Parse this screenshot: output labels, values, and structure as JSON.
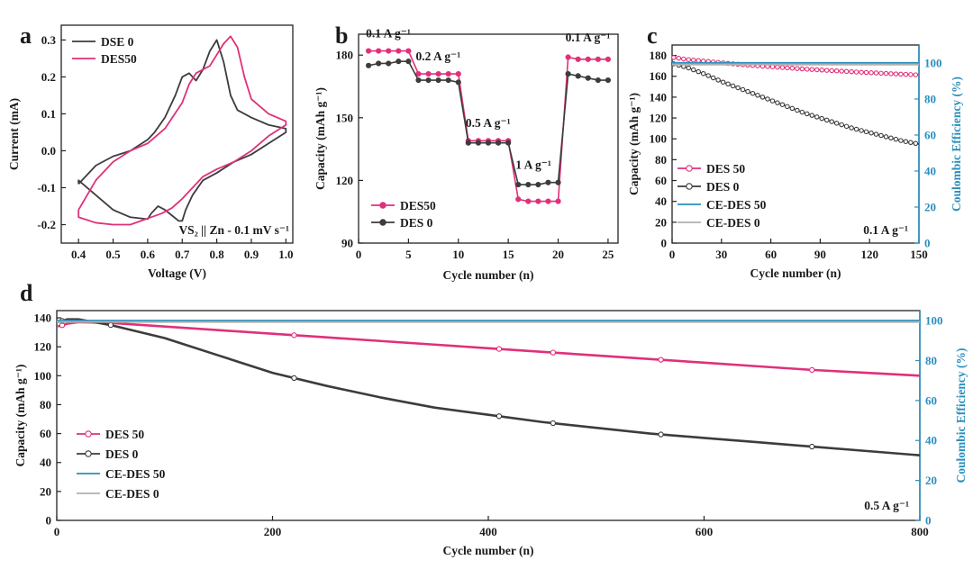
{
  "colors": {
    "pink": "#e0307a",
    "dark": "#3c3c3c",
    "blue": "#2a8fbd",
    "lightgray": "#b0b0b0"
  },
  "chart_data": [
    {
      "id": "a",
      "panel_label": "a",
      "type": "line",
      "title": "",
      "xlabel": "Voltage (V)",
      "ylabel": "Current (mA)",
      "xlim": [
        0.35,
        1.02
      ],
      "ylim": [
        -0.25,
        0.34
      ],
      "xticks": [
        0.4,
        0.5,
        0.6,
        0.7,
        0.8,
        0.9,
        1.0
      ],
      "yticks": [
        -0.2,
        -0.1,
        0.0,
        0.1,
        0.2,
        0.3
      ],
      "annotation": "VS₂ || Zn - 0.1 mV s⁻¹",
      "legend": [
        "DSE 0",
        "DES50"
      ],
      "series": [
        {
          "name": "DSE 0",
          "color": "#3c3c3c",
          "x": [
            0.4,
            0.45,
            0.5,
            0.55,
            0.6,
            0.62,
            0.65,
            0.68,
            0.7,
            0.72,
            0.74,
            0.76,
            0.78,
            0.8,
            0.82,
            0.84,
            0.86,
            0.9,
            0.95,
            1.0,
            1.0,
            0.95,
            0.9,
            0.85,
            0.8,
            0.76,
            0.73,
            0.71,
            0.7,
            0.69,
            0.67,
            0.65,
            0.63,
            0.61,
            0.6,
            0.55,
            0.5,
            0.45,
            0.4
          ],
          "y": [
            -0.09,
            -0.04,
            -0.015,
            0.0,
            0.03,
            0.05,
            0.09,
            0.15,
            0.2,
            0.21,
            0.19,
            0.22,
            0.27,
            0.3,
            0.24,
            0.15,
            0.11,
            0.09,
            0.07,
            0.06,
            0.05,
            0.02,
            -0.01,
            -0.03,
            -0.06,
            -0.08,
            -0.12,
            -0.16,
            -0.19,
            -0.19,
            -0.175,
            -0.16,
            -0.15,
            -0.17,
            -0.185,
            -0.18,
            -0.16,
            -0.12,
            -0.08
          ]
        },
        {
          "name": "DES50",
          "color": "#e0307a",
          "x": [
            0.4,
            0.45,
            0.5,
            0.55,
            0.6,
            0.65,
            0.7,
            0.72,
            0.74,
            0.76,
            0.78,
            0.8,
            0.82,
            0.84,
            0.86,
            0.88,
            0.9,
            0.95,
            1.0,
            1.0,
            0.95,
            0.9,
            0.85,
            0.8,
            0.76,
            0.73,
            0.7,
            0.67,
            0.64,
            0.61,
            0.58,
            0.55,
            0.5,
            0.45,
            0.4
          ],
          "y": [
            -0.16,
            -0.08,
            -0.03,
            0.0,
            0.02,
            0.06,
            0.13,
            0.18,
            0.21,
            0.22,
            0.23,
            0.26,
            0.29,
            0.31,
            0.28,
            0.2,
            0.14,
            0.1,
            0.08,
            0.07,
            0.04,
            0.0,
            -0.03,
            -0.05,
            -0.07,
            -0.1,
            -0.13,
            -0.155,
            -0.17,
            -0.18,
            -0.19,
            -0.2,
            -0.2,
            -0.195,
            -0.18
          ]
        }
      ]
    },
    {
      "id": "b",
      "panel_label": "b",
      "type": "line",
      "title": "",
      "xlabel": "Cycle number (n)",
      "ylabel": "Capacity (mAh g⁻¹)",
      "xlim": [
        0,
        26
      ],
      "ylim": [
        90,
        190
      ],
      "xticks": [
        0,
        5,
        10,
        15,
        20,
        25
      ],
      "yticks": [
        90,
        120,
        150,
        180
      ],
      "annotations": [
        "0.1 A g⁻¹",
        "0.2 A g⁻¹",
        "0.5 A g⁻¹",
        "1 A g⁻¹",
        "0.1 A g⁻¹"
      ],
      "legend": [
        "DES50",
        "DES 0"
      ],
      "series": [
        {
          "name": "DES50",
          "color": "#e0307a",
          "x": [
            1,
            2,
            3,
            4,
            5,
            6,
            7,
            8,
            9,
            10,
            11,
            12,
            13,
            14,
            15,
            16,
            17,
            18,
            19,
            20,
            21,
            22,
            23,
            24,
            25
          ],
          "y": [
            182,
            182,
            182,
            182,
            182,
            171,
            171,
            171,
            171,
            171,
            139,
            139,
            139,
            139,
            139,
            111,
            110,
            110,
            110,
            110,
            179,
            178,
            178,
            178,
            178
          ]
        },
        {
          "name": "DES 0",
          "color": "#3c3c3c",
          "x": [
            1,
            2,
            3,
            4,
            5,
            6,
            7,
            8,
            9,
            10,
            11,
            12,
            13,
            14,
            15,
            16,
            17,
            18,
            19,
            20,
            21,
            22,
            23,
            24,
            25
          ],
          "y": [
            175,
            176,
            176,
            177,
            177,
            168,
            168,
            168,
            168,
            167,
            138,
            138,
            138,
            138,
            138,
            118,
            118,
            118,
            119,
            119,
            171,
            170,
            169,
            168,
            168
          ]
        }
      ]
    },
    {
      "id": "c",
      "panel_label": "c",
      "type": "line",
      "title": "",
      "xlabel": "Cycle number (n)",
      "ylabel": "Capacity (mAh g⁻¹)",
      "y2label": "Coulombic Efficiency (%)",
      "xlim": [
        0,
        150
      ],
      "ylim": [
        0,
        190
      ],
      "y2lim": [
        0,
        110
      ],
      "xticks": [
        0,
        30,
        60,
        90,
        120,
        150
      ],
      "yticks": [
        0,
        20,
        40,
        60,
        80,
        100,
        120,
        140,
        160,
        180
      ],
      "y2ticks": [
        0,
        20,
        40,
        60,
        80,
        100
      ],
      "annotation": "0.1 A g⁻¹",
      "legend": [
        "DES 50",
        "DES  0",
        "CE-DES 50",
        "CE-DES  0"
      ],
      "series": [
        {
          "name": "DES 50",
          "color": "#e0307a",
          "axis": "left",
          "x": [
            1,
            10,
            20,
            30,
            40,
            50,
            60,
            70,
            80,
            90,
            100,
            110,
            120,
            130,
            140,
            150
          ],
          "y": [
            178,
            176,
            174.5,
            173,
            171.5,
            170.3,
            169.2,
            168.1,
            167,
            166.1,
            165.2,
            164.3,
            163.5,
            162.7,
            162,
            161.3
          ]
        },
        {
          "name": "DES  0",
          "color": "#3c3c3c",
          "axis": "left",
          "x": [
            1,
            10,
            20,
            30,
            40,
            50,
            60,
            70,
            80,
            90,
            100,
            110,
            120,
            130,
            140,
            150
          ],
          "y": [
            172,
            168,
            162,
            155,
            149,
            143,
            137,
            131,
            125,
            120,
            115,
            110,
            106,
            102,
            98,
            95
          ]
        },
        {
          "name": "CE-DES 50",
          "color": "#2a8fbd",
          "axis": "right",
          "x": [
            0,
            150
          ],
          "y": [
            100,
            100
          ]
        },
        {
          "name": "CE-DES  0",
          "color": "#b0b0b0",
          "axis": "right",
          "x": [
            0,
            150
          ],
          "y": [
            99.2,
            99.2
          ]
        }
      ]
    },
    {
      "id": "d",
      "panel_label": "d",
      "type": "line",
      "title": "",
      "xlabel": "Cycle number (n)",
      "ylabel": "Capacity (mAh g⁻¹)",
      "y2label": "Coulombic Efficiency (%)",
      "xlim": [
        0,
        800
      ],
      "ylim": [
        0,
        145
      ],
      "y2lim": [
        0,
        105
      ],
      "xticks": [
        0,
        200,
        400,
        600,
        800
      ],
      "yticks": [
        0,
        20,
        40,
        60,
        80,
        100,
        120,
        140
      ],
      "y2ticks": [
        0,
        20,
        40,
        60,
        80,
        100
      ],
      "annotation": "0.5 A g⁻¹",
      "legend": [
        "DES 50",
        "DES  0",
        "CE-DES 50",
        "CE-DES  0"
      ],
      "series": [
        {
          "name": "DES 50",
          "color": "#e0307a",
          "axis": "left",
          "x": [
            1,
            10,
            20,
            50,
            100,
            150,
            200,
            250,
            300,
            350,
            400,
            450,
            500,
            550,
            600,
            650,
            700,
            750,
            800
          ],
          "y": [
            134,
            136,
            137,
            136.5,
            134,
            131.5,
            129,
            126.5,
            124,
            121.5,
            119,
            116.5,
            114,
            111.5,
            109,
            106.5,
            104,
            102,
            100
          ]
        },
        {
          "name": "DES  0",
          "color": "#3c3c3c",
          "axis": "left",
          "x": [
            1,
            10,
            20,
            50,
            100,
            150,
            200,
            250,
            300,
            350,
            400,
            450,
            500,
            550,
            600,
            650,
            700,
            750,
            800
          ],
          "y": [
            137,
            139,
            139,
            135,
            126,
            114,
            102,
            93,
            85,
            78,
            73,
            68,
            64,
            60,
            57,
            54,
            51,
            48,
            45
          ]
        },
        {
          "name": "CE-DES 50",
          "color": "#2a8fbd",
          "axis": "right",
          "x": [
            0,
            800
          ],
          "y": [
            100,
            100
          ]
        },
        {
          "name": "CE-DES  0",
          "color": "#b0b0b0",
          "axis": "right",
          "x": [
            0,
            800
          ],
          "y": [
            99.3,
            99.3
          ]
        }
      ]
    }
  ]
}
